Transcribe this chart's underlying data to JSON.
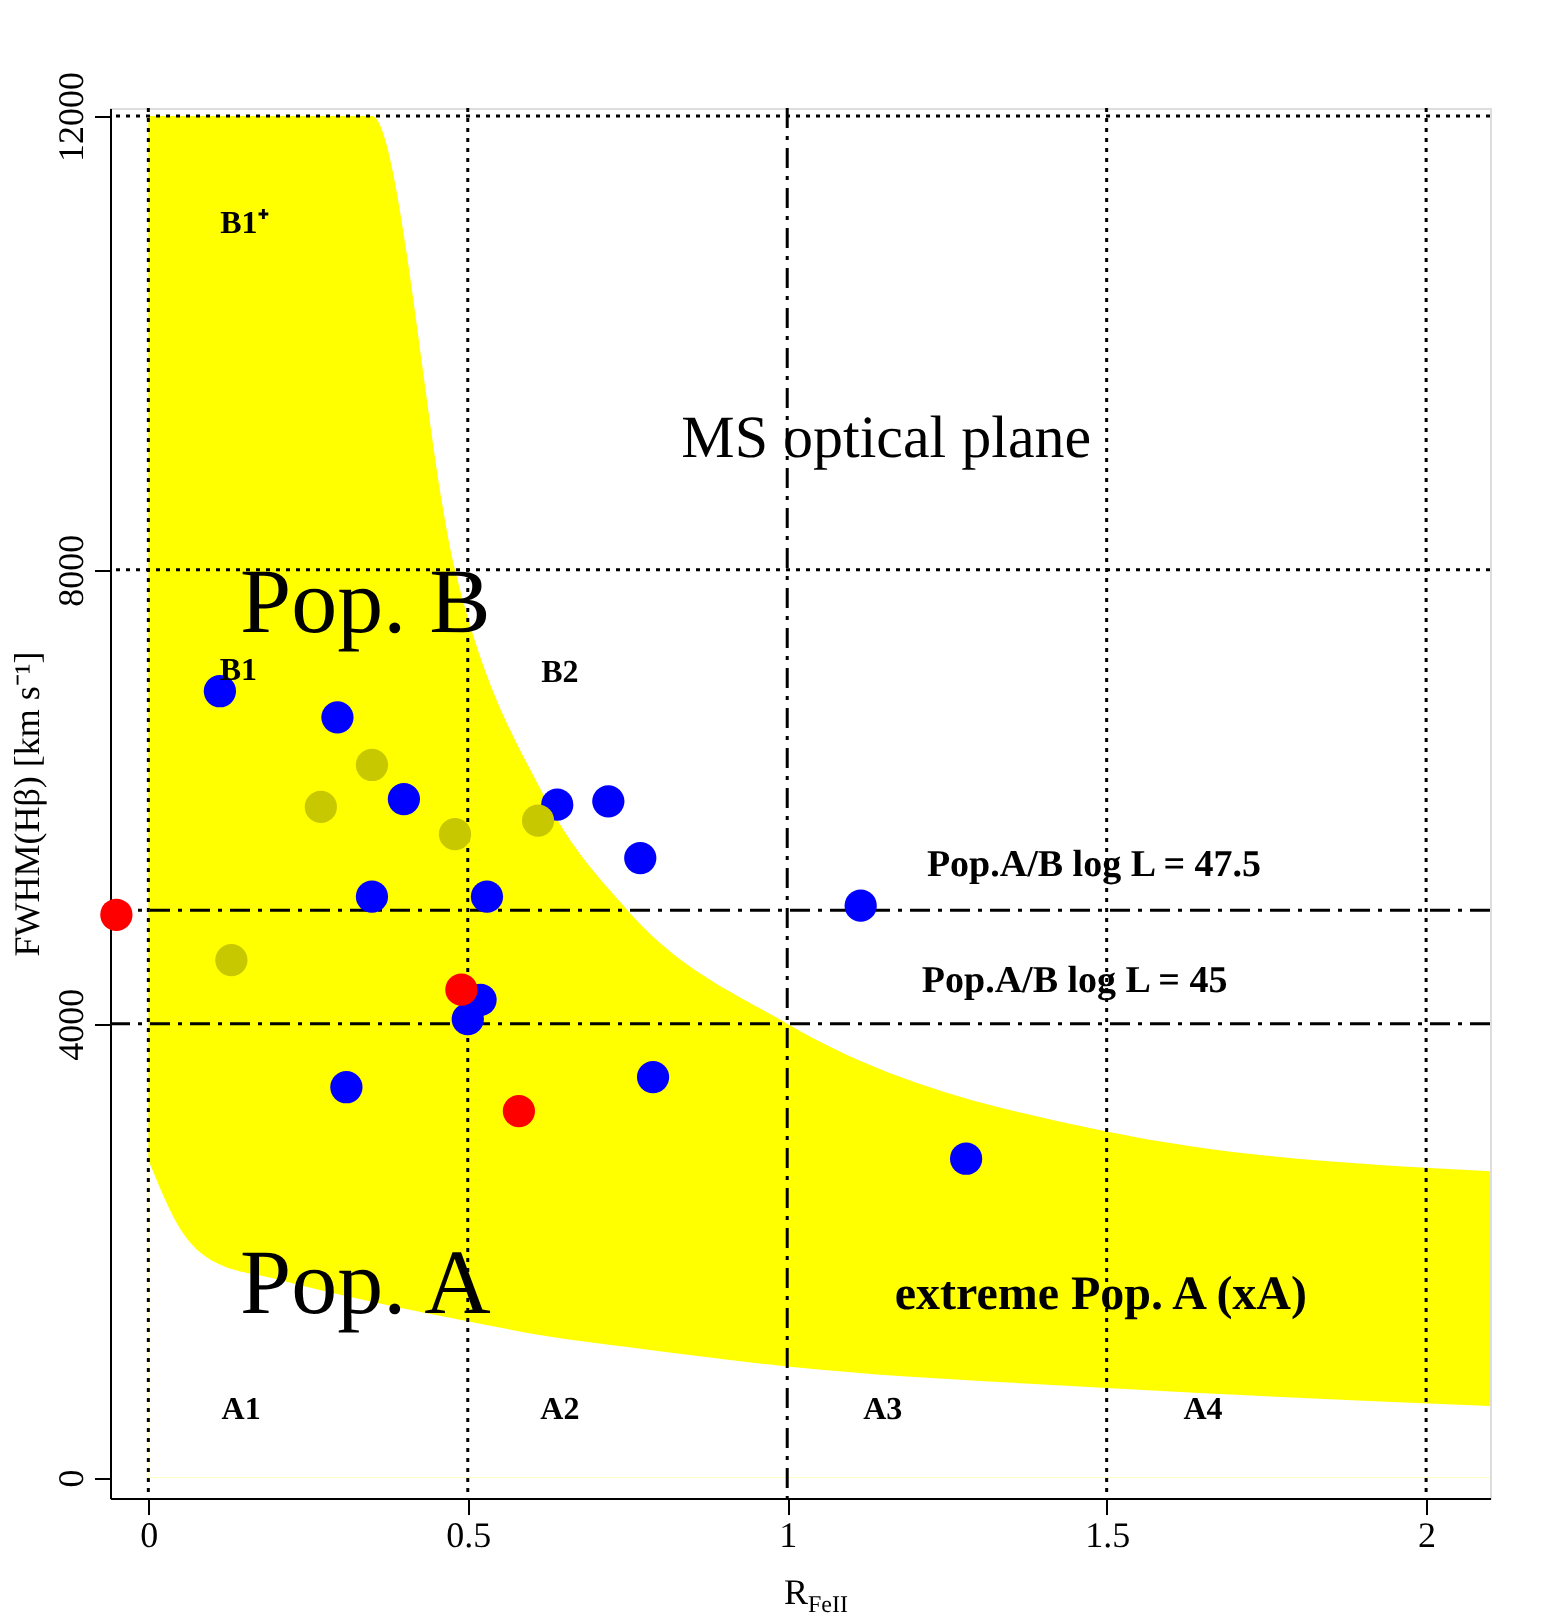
{
  "chart_data": {
    "type": "scatter",
    "xlabel": "R$_{FeII}$",
    "ylabel": "FWHM(Hβ) [km s⁻¹]",
    "xlim": [
      -0.06,
      2.1
    ],
    "ylim": [
      -180,
      12070
    ],
    "xticks": [
      0,
      0.5,
      1,
      1.5,
      2
    ],
    "yticks": [
      0,
      4000,
      8000,
      12000
    ],
    "grid": false,
    "series": [
      {
        "type": "area",
        "color": "#ffff00",
        "x": [
          0,
          0.05,
          0.1,
          0.2,
          0.35,
          0.48,
          0.62,
          0.75,
          1,
          1.5,
          2.1
        ],
        "values": [
          12000,
          12000,
          12000,
          12000,
          12000,
          8000,
          6000,
          5000,
          4000,
          3050,
          2700
        ]
      },
      {
        "type": "area",
        "color": "#ffffff",
        "x": [
          0,
          0.05,
          0.1,
          0.2,
          0.35,
          0.48,
          0.62,
          0.75,
          1,
          1.5,
          2.1
        ],
        "values": [
          2800,
          2190,
          1910,
          1750,
          1550,
          1400,
          1250,
          1150,
          980,
          790,
          630
        ]
      },
      {
        "color": "#0000ff",
        "marker": "circle",
        "x": [
          0.112,
          0.296,
          0.4,
          0.35,
          0.53,
          0.64,
          0.72,
          0.77,
          0.52,
          0.5,
          0.31,
          0.79,
          1.115,
          1.28
        ],
        "values": [
          6930,
          6700,
          5980,
          5120,
          5120,
          5930,
          5960,
          5460,
          4210,
          4040,
          3440,
          3530,
          5040,
          2810
        ]
      },
      {
        "color": "#c8c800",
        "marker": "circle",
        "x": [
          0.27,
          0.35,
          0.48,
          0.61,
          0.13
        ],
        "values": [
          5910,
          6280,
          5670,
          5790,
          4560
        ]
      },
      {
        "color": "#ff0000",
        "marker": "circle",
        "x": [
          -0.05,
          0.49,
          0.58
        ],
        "values": [
          4960,
          4300,
          3230
        ]
      }
    ],
    "ref_lines": [
      {
        "axis": "y",
        "value": 5000,
        "line_style": "dashed",
        "color": "#000000"
      },
      {
        "axis": "y",
        "value": 4000,
        "line_style": "dashed",
        "color": "#000000"
      },
      {
        "axis": "x",
        "value": 1,
        "line_style": "dashed",
        "color": "#000000"
      },
      {
        "axis": "x",
        "value": 0,
        "line_style": "dotted",
        "color": "#000000"
      },
      {
        "axis": "x",
        "value": 0.5,
        "line_style": "dotted",
        "color": "#000000"
      },
      {
        "axis": "x",
        "value": 1.5,
        "line_style": "dotted",
        "color": "#000000"
      },
      {
        "axis": "x",
        "value": 2,
        "line_style": "dotted",
        "color": "#000000"
      },
      {
        "axis": "y",
        "value": 8000,
        "line_style": "dotted",
        "color": "#000000"
      },
      {
        "axis": "y",
        "value": 12000,
        "line_style": "dotted",
        "color": "#000000"
      }
    ],
    "annotations": [
      "B1⁺",
      "MS optical plane",
      "Pop. B",
      "B1",
      "B2",
      "Pop. A",
      "extreme Pop. A (xA)",
      "A1",
      "A2",
      "A3",
      "A4",
      "Pop.A/B log L = 47.5",
      "Pop.A/B log L = 45"
    ]
  }
}
